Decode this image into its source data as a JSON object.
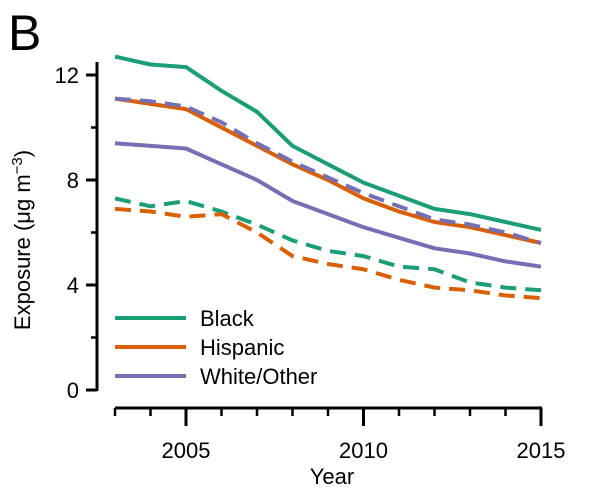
{
  "panel_label": "B",
  "colors": {
    "black": "#1a9e77",
    "hispanic": "#d95f02",
    "white_other": "#7570b3",
    "axis": "#000000"
  },
  "chart_data": {
    "type": "line",
    "title": "",
    "xlabel": "Year",
    "ylabel": "Exposure (μg m⁻³)",
    "ylabel_parts": {
      "pre": "Exposure (μg m",
      "sup": "−3",
      "post": ")"
    },
    "xlim": [
      2003,
      2015
    ],
    "ylim": [
      0,
      13
    ],
    "xticks": [
      2005,
      2010,
      2015
    ],
    "xticks_labels": [
      "2005",
      "2010",
      "2015"
    ],
    "yticks": [
      0,
      4,
      8,
      12
    ],
    "yticks_labels": [
      "0",
      "4",
      "8",
      "12"
    ],
    "x_minor_ticks": [
      2003,
      2004,
      2005,
      2006,
      2007,
      2008,
      2009,
      2010,
      2011,
      2012,
      2013,
      2014,
      2015
    ],
    "legend": {
      "placement": "bottom-left",
      "entries": [
        "Black",
        "Hispanic",
        "White/Other"
      ]
    },
    "x": [
      2003,
      2004,
      2005,
      2006,
      2007,
      2008,
      2009,
      2010,
      2011,
      2012,
      2013,
      2014,
      2015
    ],
    "series": [
      {
        "name": "Black",
        "group": "black",
        "style": "solid",
        "values": [
          12.7,
          12.4,
          12.3,
          11.4,
          10.6,
          9.3,
          8.6,
          7.9,
          7.4,
          6.9,
          6.7,
          6.4,
          6.1
        ]
      },
      {
        "name": "Hispanic",
        "group": "hispanic",
        "style": "solid",
        "values": [
          11.1,
          10.9,
          10.7,
          10.0,
          9.3,
          8.6,
          8.0,
          7.3,
          6.8,
          6.4,
          6.2,
          5.9,
          5.6
        ]
      },
      {
        "name": "White/Other",
        "group": "white_other",
        "style": "solid",
        "values": [
          9.4,
          9.3,
          9.2,
          8.6,
          8.0,
          7.2,
          6.7,
          6.2,
          5.8,
          5.4,
          5.2,
          4.9,
          4.7
        ]
      },
      {
        "name": "",
        "group": "white_other",
        "style": "dashed",
        "values": [
          11.1,
          11.0,
          10.8,
          10.2,
          9.4,
          8.7,
          8.1,
          7.5,
          7.0,
          6.5,
          6.3,
          6.0,
          5.6
        ]
      },
      {
        "name": "",
        "group": "black",
        "style": "dashed",
        "values": [
          7.3,
          7.0,
          7.2,
          6.8,
          6.3,
          5.7,
          5.3,
          5.1,
          4.7,
          4.6,
          4.1,
          3.9,
          3.8
        ]
      },
      {
        "name": "",
        "group": "hispanic",
        "style": "dashed",
        "values": [
          6.9,
          6.8,
          6.6,
          6.7,
          6.0,
          5.1,
          4.8,
          4.6,
          4.2,
          3.9,
          3.8,
          3.6,
          3.5
        ]
      }
    ]
  }
}
